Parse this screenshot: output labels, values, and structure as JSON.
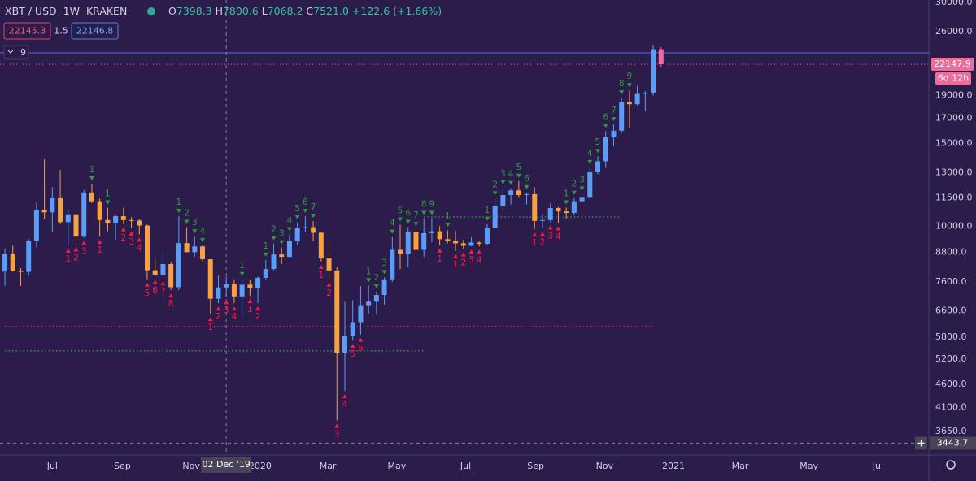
{
  "chart_data": {
    "type": "candlestick",
    "symbol": "XBT / USD",
    "interval": "1W",
    "exchange": "KRAKEN",
    "ohlc": [
      {
        "label": "O",
        "value": 7398.3
      },
      {
        "label": "H",
        "value": 7800.6
      },
      {
        "label": "L",
        "value": 7068.2
      },
      {
        "label": "C",
        "value": {
          "value": 7521,
          "label": "7521.0"
        }
      }
    ],
    "change": {
      "value": 122.6,
      "label": "+122.6"
    },
    "change_pct": {
      "value": 1.66,
      "label": "(+1.66%)"
    },
    "bid": 22145.3,
    "spread": 1.5,
    "ask": 22146.8,
    "indicator_count": 9,
    "last_price": 22147.9,
    "countdown": "6d 12h",
    "crosshair": {
      "x": 28,
      "date": "02 Dec '19",
      "price": 3443.7
    },
    "log_scale": true,
    "up_color": "#5b9cf6",
    "down_color": "#f9a03f",
    "current_color": "#f06b9a",
    "xlim": [
      -0.62,
      116.87
    ],
    "ylim": [
      3249,
      30361
    ],
    "xticks": [
      {
        "value": 6,
        "label": "Jul"
      },
      {
        "value": 14.857,
        "label": "Sep"
      },
      {
        "value": 23.571,
        "label": "Nov"
      },
      {
        "value": 32.286,
        "label": "2020"
      },
      {
        "value": 40.857,
        "label": "Mar"
      },
      {
        "value": 49.571,
        "label": "May"
      },
      {
        "value": 58.286,
        "label": "Jul"
      },
      {
        "value": 67.143,
        "label": "Sep"
      },
      {
        "value": 75.857,
        "label": "Nov"
      },
      {
        "value": 84.571,
        "label": "2021"
      },
      {
        "value": 93,
        "label": "Mar"
      },
      {
        "value": 101.714,
        "label": "May"
      },
      {
        "value": 110.429,
        "label": "Jul"
      }
    ],
    "yticks": [
      {
        "value": 30000,
        "label": "30000.0"
      },
      {
        "value": 26000,
        "label": "26000.0"
      },
      {
        "value": 19000,
        "label": "19000.0"
      },
      {
        "value": 17000,
        "label": "17000.0"
      },
      {
        "value": 15000,
        "label": "15000.0"
      },
      {
        "value": 13000,
        "label": "13000.0"
      },
      {
        "value": 11500,
        "label": "11500.0"
      },
      {
        "value": 10000,
        "label": "10000.0"
      },
      {
        "value": 8800,
        "label": "8800.0"
      },
      {
        "value": 7600,
        "label": "7600.0"
      },
      {
        "value": 6600,
        "label": "6600.0"
      },
      {
        "value": 5800,
        "label": "5800.0"
      },
      {
        "value": 5200,
        "label": "5200.0"
      },
      {
        "value": 4600,
        "label": "4600.0"
      },
      {
        "value": 4100,
        "label": "4100.0"
      },
      {
        "value": 3650,
        "label": "3650.0"
      }
    ],
    "candles": {
      "x": [
        0,
        1,
        2,
        3,
        4,
        5,
        6,
        7,
        8,
        9,
        10,
        11,
        12,
        13,
        14,
        15,
        16,
        17,
        18,
        19,
        20,
        21,
        22,
        23,
        24,
        25,
        26,
        27,
        28,
        29,
        30,
        31,
        32,
        33,
        34,
        35,
        36,
        37,
        38,
        39,
        40,
        41,
        42,
        43,
        44,
        45,
        46,
        47,
        48,
        49,
        50,
        51,
        52,
        53,
        54,
        55,
        56,
        57,
        58,
        59,
        60,
        61,
        62,
        63,
        64,
        65,
        66,
        67,
        68,
        69,
        70,
        71,
        72,
        73,
        74,
        75,
        76,
        77,
        78,
        79,
        80,
        81,
        82,
        83
      ],
      "open": [
        8000,
        8720,
        8040,
        7990,
        9320,
        10820,
        10700,
        11470,
        10200,
        10600,
        9500,
        11800,
        11300,
        10300,
        10150,
        10500,
        10300,
        10280,
        10030,
        8050,
        7880,
        8300,
        7410,
        9200,
        8800,
        9050,
        8500,
        7000,
        7398.3,
        7521,
        7080,
        7500,
        7390,
        7760,
        8100,
        8700,
        8600,
        9300,
        9900,
        9950,
        9680,
        8530,
        8040,
        5370,
        5830,
        6240,
        6780,
        6900,
        7130,
        7700,
        8900,
        8730,
        9700,
        8900,
        9660,
        9750,
        9380,
        9300,
        9190,
        9080,
        9230,
        9170,
        9930,
        11050,
        11650,
        11920,
        11650,
        11700,
        10260,
        10300,
        10930,
        10750,
        10670,
        11300,
        11500,
        13030,
        13750,
        15480,
        15980,
        18400,
        18200,
        19150,
        19270,
        23840
      ],
      "high": [
        8950,
        9090,
        8140,
        9390,
        11230,
        13880,
        12100,
        13180,
        10800,
        10650,
        11950,
        12320,
        11450,
        10950,
        10600,
        10950,
        10450,
        10350,
        10080,
        8500,
        8840,
        8400,
        10500,
        9950,
        9500,
        9100,
        8500,
        7850,
        7800.6,
        7700,
        7700,
        7700,
        7800,
        8470,
        9180,
        9000,
        9600,
        10180,
        10500,
        10250,
        9700,
        9190,
        8180,
        6900,
        6950,
        7450,
        7470,
        7250,
        7780,
        9480,
        10070,
        9950,
        9850,
        10400,
        10400,
        10000,
        9800,
        9780,
        9350,
        9470,
        9300,
        10100,
        11450,
        12080,
        12050,
        12480,
        11800,
        12100,
        10600,
        11180,
        10990,
        10950,
        11480,
        11720,
        13350,
        14100,
        15950,
        16480,
        18800,
        19480,
        19920,
        19420,
        24300,
        24100
      ],
      "low": [
        7460,
        8000,
        7450,
        7850,
        9020,
        10350,
        9700,
        10100,
        9100,
        9150,
        9450,
        11200,
        9500,
        9750,
        9350,
        10100,
        9900,
        9600,
        7700,
        7800,
        7750,
        7300,
        7300,
        8800,
        8600,
        8400,
        6500,
        6850,
        7068.2,
        6850,
        6420,
        7100,
        6850,
        7700,
        8050,
        8300,
        8550,
        9100,
        9700,
        9300,
        8400,
        7700,
        3850,
        4450,
        5700,
        5870,
        6480,
        6500,
        6800,
        7600,
        8100,
        8200,
        8700,
        8600,
        9250,
        9100,
        9200,
        8850,
        8930,
        9060,
        9050,
        9120,
        9900,
        10900,
        11120,
        11500,
        11120,
        9850,
        9880,
        10200,
        10150,
        10370,
        10550,
        11200,
        11450,
        12900,
        13300,
        14800,
        15800,
        16200,
        18100,
        17600,
        19000,
        21800
      ],
      "close": [
        8720,
        8040,
        7990,
        9320,
        10820,
        10700,
        11470,
        10200,
        10600,
        9500,
        11800,
        11300,
        10300,
        10150,
        10500,
        10300,
        10280,
        10030,
        8050,
        7880,
        8300,
        7410,
        9200,
        8800,
        9050,
        8500,
        7000,
        7400,
        7521,
        7080,
        7500,
        7390,
        7760,
        8100,
        8700,
        8600,
        9300,
        9900,
        9950,
        9680,
        8530,
        8040,
        5370,
        5830,
        6240,
        6780,
        6900,
        7130,
        7700,
        8900,
        8730,
        9700,
        8900,
        9660,
        9750,
        9380,
        9300,
        9190,
        9080,
        9230,
        9170,
        9930,
        11050,
        11650,
        11920,
        11650,
        11700,
        10260,
        10300,
        10930,
        10750,
        10670,
        11300,
        11500,
        13030,
        13750,
        15480,
        15980,
        18400,
        18200,
        19150,
        19270,
        23840,
        22147.9
      ]
    },
    "sell_setup": {
      "color": "#2e9b3e",
      "x": [
        11,
        13,
        22,
        23,
        24,
        25,
        30,
        33,
        34,
        35,
        36,
        37,
        38,
        39,
        46,
        47,
        48,
        49,
        50,
        51,
        52,
        53,
        54,
        56,
        61,
        62,
        63,
        64,
        65,
        66,
        71,
        72,
        73,
        74,
        75,
        76,
        77,
        78,
        79
      ],
      "labels": [
        1,
        1,
        1,
        2,
        3,
        4,
        1,
        1,
        2,
        3,
        4,
        5,
        6,
        7,
        1,
        2,
        3,
        4,
        5,
        6,
        7,
        8,
        9,
        1,
        1,
        2,
        3,
        4,
        5,
        6,
        1,
        2,
        3,
        4,
        5,
        6,
        7,
        8,
        9
      ]
    },
    "buy_setup": {
      "color": "#ff1744",
      "x": [
        8,
        9,
        10,
        12,
        15,
        16,
        17,
        18,
        19,
        20,
        21,
        26,
        27,
        28,
        29,
        31,
        32,
        40,
        41,
        42,
        43,
        44,
        45,
        55,
        57,
        58,
        59,
        60,
        67,
        68,
        69,
        70
      ],
      "labels": [
        1,
        2,
        3,
        1,
        2,
        3,
        4,
        5,
        6,
        7,
        8,
        1,
        2,
        3,
        4,
        1,
        2,
        1,
        2,
        3,
        4,
        5,
        6,
        1,
        1,
        2,
        3,
        4,
        1,
        2,
        3,
        4
      ]
    },
    "levels": [
      {
        "value": 6106,
        "from": 0,
        "to": 82,
        "color": "#e53950"
      },
      {
        "value": 5417,
        "from": 0,
        "to": 53,
        "color": "#3aa84a"
      },
      {
        "value": 10462,
        "from": 53,
        "to": 78,
        "color": "#3aa84a"
      }
    ]
  }
}
